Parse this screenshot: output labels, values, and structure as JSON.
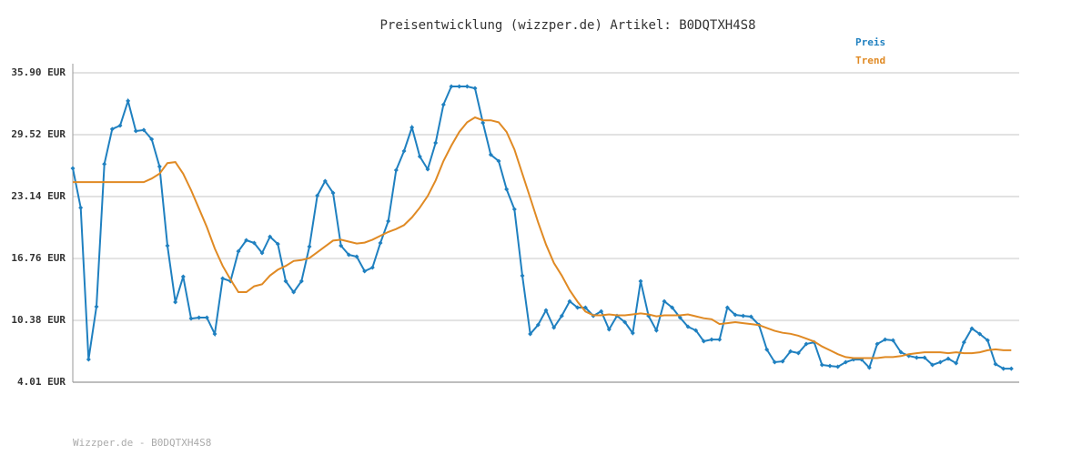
{
  "chart_data": {
    "type": "line",
    "title": "Preisentwicklung (wizzper.de) Artikel: B0DQTXH4S8",
    "footer": "Wizzper.de - B0DQTXH4S8",
    "legend": "top-right",
    "grid": true,
    "ylim": [
      4.01,
      35.9
    ],
    "yticks": [
      {
        "value": 4.01,
        "label": "4.01 EUR"
      },
      {
        "value": 10.38,
        "label": "10.38 EUR"
      },
      {
        "value": 16.76,
        "label": "16.76 EUR"
      },
      {
        "value": 23.14,
        "label": "23.14 EUR"
      },
      {
        "value": 29.52,
        "label": "29.52 EUR"
      },
      {
        "value": 35.9,
        "label": "35.90 EUR"
      }
    ],
    "series": [
      {
        "name": "Preis",
        "color": "#1f80c0",
        "markers": true,
        "values": [
          26.05,
          22.0,
          6.35,
          11.8,
          26.5,
          30.1,
          30.46,
          33.0,
          29.9,
          30.0,
          29.05,
          26.24,
          18.08,
          12.26,
          14.89,
          10.57,
          10.67,
          10.67,
          8.98,
          14.7,
          14.42,
          17.51,
          18.64,
          18.36,
          17.33,
          19.01,
          18.26,
          14.42,
          13.29,
          14.42,
          17.98,
          23.24,
          24.74,
          23.52,
          18.08,
          17.14,
          16.95,
          15.45,
          15.83,
          18.36,
          20.61,
          25.86,
          27.83,
          30.27,
          27.27,
          25.96,
          28.68,
          32.62,
          34.49,
          34.49,
          34.49,
          34.3,
          30.74,
          27.46,
          26.8,
          23.89,
          21.83,
          14.98,
          8.98,
          9.92,
          11.42,
          9.64,
          10.85,
          12.35,
          11.7,
          11.7,
          10.85,
          11.32,
          9.45,
          10.85,
          10.2,
          9.07,
          14.42,
          10.85,
          9.35,
          12.35,
          11.7,
          10.67,
          9.73,
          9.35,
          8.23,
          8.41,
          8.41,
          11.7,
          10.95,
          10.85,
          10.76,
          9.92,
          7.38,
          6.07,
          6.16,
          7.19,
          7.01,
          7.95,
          8.13,
          5.79,
          5.69,
          5.6,
          6.07,
          6.35,
          6.35,
          5.51,
          7.95,
          8.41,
          8.32,
          7.1,
          6.72,
          6.54,
          6.54,
          5.79,
          6.07,
          6.44,
          5.97,
          8.13,
          9.54,
          8.98,
          8.32,
          5.88,
          5.41,
          5.41
        ]
      },
      {
        "name": "Trend",
        "color": "#e08a24",
        "markers": false,
        "values": [
          24.64,
          24.64,
          24.64,
          24.64,
          24.64,
          24.64,
          24.64,
          24.64,
          24.64,
          24.64,
          25.0,
          25.5,
          26.6,
          26.7,
          25.5,
          23.8,
          21.9,
          20.0,
          17.8,
          16.0,
          14.6,
          13.3,
          13.3,
          13.9,
          14.1,
          15.0,
          15.6,
          16.0,
          16.5,
          16.6,
          16.8,
          17.4,
          18.0,
          18.6,
          18.7,
          18.5,
          18.3,
          18.4,
          18.7,
          19.1,
          19.5,
          19.8,
          20.2,
          21.0,
          22.0,
          23.2,
          24.8,
          26.8,
          28.4,
          29.8,
          30.8,
          31.3,
          31.0,
          31.0,
          30.8,
          29.8,
          28.0,
          25.5,
          23.0,
          20.5,
          18.2,
          16.3,
          15.0,
          13.5,
          12.3,
          11.3,
          10.9,
          10.9,
          11.0,
          10.9,
          10.9,
          11.0,
          11.1,
          11.0,
          10.8,
          10.9,
          10.9,
          10.9,
          11.0,
          10.8,
          10.6,
          10.5,
          10.0,
          10.1,
          10.2,
          10.1,
          10.0,
          9.9,
          9.6,
          9.3,
          9.1,
          9.0,
          8.8,
          8.5,
          8.2,
          7.7,
          7.3,
          6.9,
          6.6,
          6.5,
          6.5,
          6.5,
          6.5,
          6.6,
          6.6,
          6.7,
          6.9,
          7.0,
          7.1,
          7.1,
          7.1,
          7.0,
          7.1,
          7.0,
          7.0,
          7.1,
          7.3,
          7.4,
          7.3,
          7.3
        ]
      }
    ]
  }
}
